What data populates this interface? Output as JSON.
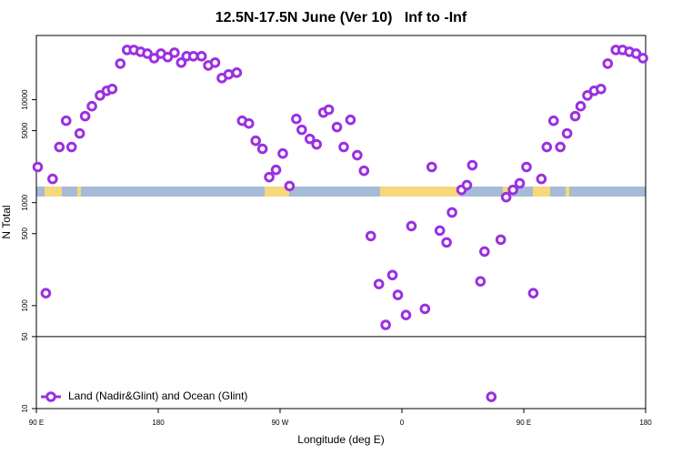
{
  "chart_data": {
    "type": "scatter",
    "title": "12.5N-17.5N June (Ver 10)   Inf to -Inf",
    "x_label": "Longitude (deg E)",
    "y_label": "N Total",
    "log_y": true,
    "hline": 50,
    "legend": "bottom-left",
    "xlim": [
      90,
      540
    ],
    "ylim": [
      10,
      42000
    ],
    "xticks": [
      {
        "value": 90,
        "label": "90 E"
      },
      180,
      {
        "value": 270,
        "label": "90 W"
      },
      {
        "value": 360,
        "label": "0"
      },
      {
        "value": 450,
        "label": "90 E"
      },
      {
        "value": 540,
        "label": "180"
      }
    ],
    "yticks": [
      10,
      50,
      100,
      500,
      1000,
      5000,
      10000
    ],
    "series": [
      {
        "name": "Land (Nadir&Glint) and Ocean (Glint)",
        "color": "#9b30e0",
        "x": [
          91,
          97,
          102,
          107,
          112,
          116,
          122,
          126,
          131,
          137,
          142,
          146,
          152,
          157,
          162,
          167,
          172,
          177,
          182,
          187,
          192,
          197,
          201,
          206,
          212,
          217,
          222,
          227,
          232,
          238,
          242,
          247,
          252,
          257,
          262,
          267,
          272,
          277,
          282,
          286,
          292,
          297,
          302,
          306,
          312,
          317,
          322,
          327,
          332,
          337,
          343,
          348,
          353,
          357,
          363,
          367,
          377,
          382,
          388,
          393,
          397,
          404,
          408,
          412,
          418,
          421,
          426,
          433,
          437,
          442,
          447,
          452,
          457,
          463,
          467,
          472,
          477,
          482,
          488,
          492,
          497,
          502,
          507,
          512,
          518,
          523,
          528,
          533,
          538
        ],
        "values": [
          2220,
          132,
          1700,
          3470,
          6240,
          3470,
          4700,
          6920,
          8640,
          11000,
          12200,
          12700,
          22400,
          30400,
          30400,
          29200,
          28000,
          25300,
          28000,
          25900,
          28600,
          22900,
          26400,
          26400,
          26400,
          21500,
          22900,
          16200,
          17600,
          18300,
          6240,
          5870,
          3990,
          3330,
          1770,
          2080,
          3000,
          1450,
          6500,
          5100,
          4160,
          3680,
          7500,
          8000,
          5420,
          3470,
          6370,
          2890,
          2040,
          474,
          162,
          65,
          198,
          127,
          81,
          592,
          93,
          2220,
          535,
          411,
          803,
          1330,
          1480,
          2310,
          172,
          335,
          13,
          437,
          1130,
          1330,
          1540,
          2220,
          132,
          1700,
          3470,
          6240,
          3470,
          4700,
          6920,
          8640,
          11000,
          12200,
          12700,
          22400,
          30400,
          30400,
          29200,
          28000,
          25300
        ]
      }
    ]
  }
}
